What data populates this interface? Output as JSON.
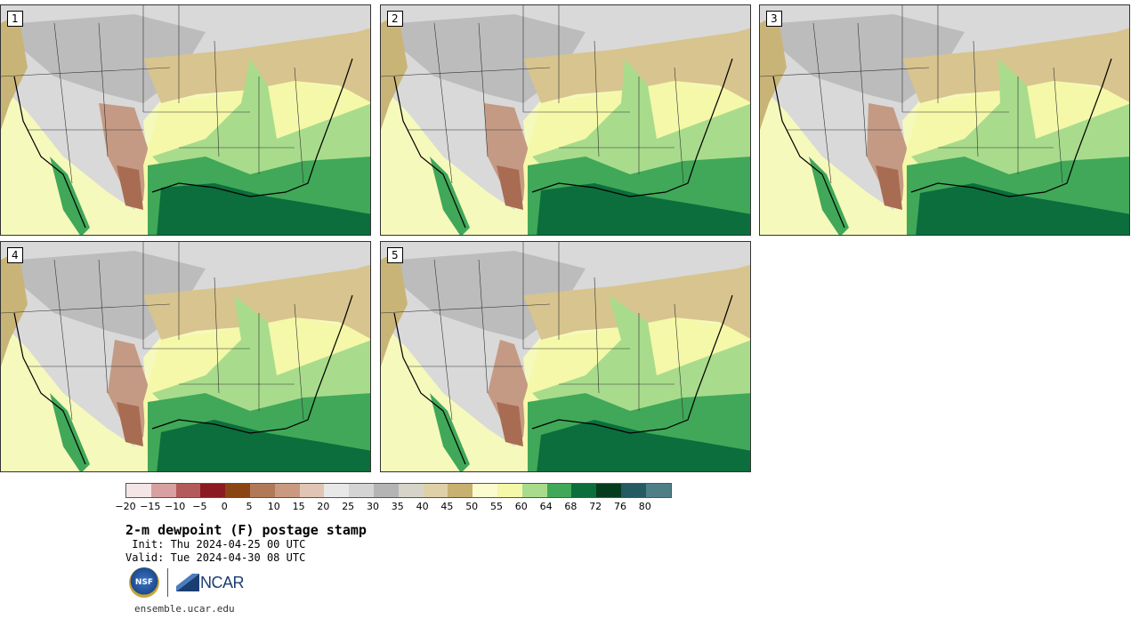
{
  "panels": [
    {
      "label": "1"
    },
    {
      "label": "2"
    },
    {
      "label": "3"
    },
    {
      "label": "4"
    },
    {
      "label": "5"
    }
  ],
  "colorbar": {
    "colors": [
      "#f4e6e6",
      "#d8a0a0",
      "#b45a5a",
      "#8c1a22",
      "#8b4513",
      "#b07a58",
      "#c99a80",
      "#e0c4b4",
      "#e8e8e8",
      "#d4d4d4",
      "#b4b4b4",
      "#d6d4c8",
      "#dfd0a8",
      "#c8b070",
      "#fbfbd0",
      "#f4f8a8",
      "#a8dc8c",
      "#40a858",
      "#0c6e3c",
      "#063c1e",
      "#245a62",
      "#4e7e86"
    ],
    "ticks": [
      "−20",
      "−15",
      "−10",
      "−5",
      "0",
      "5",
      "10",
      "15",
      "20",
      "25",
      "30",
      "35",
      "40",
      "45",
      "50",
      "55",
      "60",
      "64",
      "68",
      "72",
      "76",
      "80"
    ]
  },
  "title": "2-m dewpoint (F) postage stamp",
  "init": " Init: Thu 2024-04-25 00 UTC",
  "valid": "Valid: Tue 2024-04-30 08 UTC",
  "logos": {
    "nsf": "NSF",
    "ncar": "NCAR"
  },
  "site": "ensemble.ucar.edu"
}
